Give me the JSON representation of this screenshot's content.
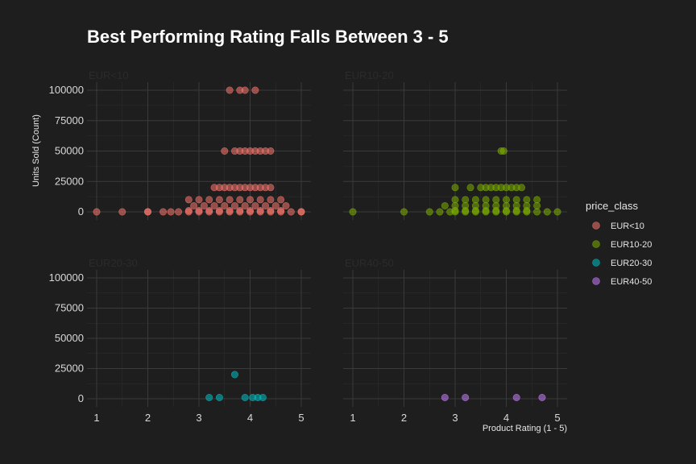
{
  "chart_data": {
    "type": "scatter",
    "title": "Best Performing Rating Falls Between 3 - 5",
    "xlabel": "Product Rating (1 - 5)",
    "ylabel": "Units Sold (Count)",
    "xlim": [
      1,
      5
    ],
    "ylim": [
      0,
      100000
    ],
    "x_ticks": [
      "1",
      "2",
      "3",
      "4",
      "5"
    ],
    "y_ticks": [
      "0",
      "25000",
      "50000",
      "75000",
      "100000"
    ],
    "grid": true,
    "legend": {
      "title": "price_class",
      "position": "right"
    },
    "facets": [
      {
        "name": "EUR<10",
        "color": "#f8766d",
        "points": [
          [
            1,
            0
          ],
          [
            1.5,
            0
          ],
          [
            2,
            0
          ],
          [
            2,
            100
          ],
          [
            2.3,
            0
          ],
          [
            2.45,
            0
          ],
          [
            2.6,
            0
          ],
          [
            2.8,
            0
          ],
          [
            3.0,
            0
          ],
          [
            3.2,
            0
          ],
          [
            3.4,
            0
          ],
          [
            3.6,
            0
          ],
          [
            3.8,
            0
          ],
          [
            4.0,
            0
          ],
          [
            4.2,
            0
          ],
          [
            4.4,
            0
          ],
          [
            4.6,
            0
          ],
          [
            4.8,
            0
          ],
          [
            5,
            0
          ],
          [
            5,
            100
          ],
          [
            3.0,
            1000
          ],
          [
            3.2,
            1000
          ],
          [
            3.4,
            1000
          ],
          [
            3.6,
            1000
          ],
          [
            3.8,
            1000
          ],
          [
            4.0,
            1000
          ],
          [
            4.2,
            1000
          ],
          [
            4.4,
            1000
          ],
          [
            4.6,
            1000
          ],
          [
            2.8,
            1000
          ],
          [
            3.1,
            5000
          ],
          [
            3.3,
            5000
          ],
          [
            3.5,
            5000
          ],
          [
            3.7,
            5000
          ],
          [
            3.9,
            5000
          ],
          [
            4.1,
            5000
          ],
          [
            4.3,
            5000
          ],
          [
            4.5,
            5000
          ],
          [
            4.7,
            5000
          ],
          [
            2.9,
            5000
          ],
          [
            3.0,
            10000
          ],
          [
            3.2,
            10000
          ],
          [
            3.4,
            10000
          ],
          [
            3.6,
            10000
          ],
          [
            3.8,
            10000
          ],
          [
            4.0,
            10000
          ],
          [
            4.2,
            10000
          ],
          [
            4.4,
            10000
          ],
          [
            4.6,
            10000
          ],
          [
            2.8,
            10000
          ],
          [
            3.3,
            20000
          ],
          [
            3.4,
            20000
          ],
          [
            3.5,
            20000
          ],
          [
            3.6,
            20000
          ],
          [
            3.7,
            20000
          ],
          [
            3.8,
            20000
          ],
          [
            3.9,
            20000
          ],
          [
            4.0,
            20000
          ],
          [
            4.1,
            20000
          ],
          [
            4.2,
            20000
          ],
          [
            4.3,
            20000
          ],
          [
            4.4,
            20000
          ],
          [
            3.5,
            50000
          ],
          [
            3.7,
            50000
          ],
          [
            3.8,
            50000
          ],
          [
            3.9,
            50000
          ],
          [
            4.0,
            50000
          ],
          [
            4.1,
            50000
          ],
          [
            4.2,
            50000
          ],
          [
            4.3,
            50000
          ],
          [
            4.4,
            50000
          ],
          [
            3.6,
            100000
          ],
          [
            3.8,
            100000
          ],
          [
            3.9,
            100000
          ],
          [
            4.1,
            100000
          ]
        ]
      },
      {
        "name": "EUR10-20",
        "color": "#7cae00",
        "points": [
          [
            1,
            0
          ],
          [
            2,
            0
          ],
          [
            2.5,
            0
          ],
          [
            2.7,
            0
          ],
          [
            2.9,
            0
          ],
          [
            3.0,
            0
          ],
          [
            3.2,
            0
          ],
          [
            3.4,
            0
          ],
          [
            3.6,
            0
          ],
          [
            3.8,
            0
          ],
          [
            4.0,
            0
          ],
          [
            4.2,
            0
          ],
          [
            4.4,
            0
          ],
          [
            4.6,
            0
          ],
          [
            4.8,
            0
          ],
          [
            5,
            0
          ],
          [
            3.0,
            1000
          ],
          [
            3.2,
            1000
          ],
          [
            3.4,
            1000
          ],
          [
            3.6,
            1000
          ],
          [
            3.8,
            1000
          ],
          [
            4.0,
            1000
          ],
          [
            4.2,
            1000
          ],
          [
            4.4,
            1000
          ],
          [
            3.0,
            5000
          ],
          [
            3.2,
            5000
          ],
          [
            3.4,
            5000
          ],
          [
            3.6,
            5000
          ],
          [
            3.8,
            5000
          ],
          [
            4.0,
            5000
          ],
          [
            4.2,
            5000
          ],
          [
            4.4,
            5000
          ],
          [
            4.6,
            5000
          ],
          [
            2.8,
            5000
          ],
          [
            3.0,
            10000
          ],
          [
            3.2,
            10000
          ],
          [
            3.4,
            10000
          ],
          [
            3.6,
            10000
          ],
          [
            3.8,
            10000
          ],
          [
            4.0,
            10000
          ],
          [
            4.2,
            10000
          ],
          [
            4.4,
            10000
          ],
          [
            4.6,
            10000
          ],
          [
            3.0,
            20000
          ],
          [
            3.3,
            20000
          ],
          [
            3.5,
            20000
          ],
          [
            3.6,
            20000
          ],
          [
            3.7,
            20000
          ],
          [
            3.8,
            20000
          ],
          [
            3.9,
            20000
          ],
          [
            4.0,
            20000
          ],
          [
            4.1,
            20000
          ],
          [
            4.2,
            20000
          ],
          [
            4.3,
            20000
          ],
          [
            3.9,
            50000
          ],
          [
            3.95,
            50000
          ]
        ]
      },
      {
        "name": "EUR20-30",
        "color": "#00bfc4",
        "points": [
          [
            3.2,
            1000
          ],
          [
            3.4,
            1000
          ],
          [
            3.7,
            20000
          ],
          [
            3.9,
            1000
          ],
          [
            4.05,
            1000
          ],
          [
            4.15,
            1000
          ],
          [
            4.25,
            1000
          ]
        ]
      },
      {
        "name": "EUR40-50",
        "color": "#c77cff",
        "points": [
          [
            2.8,
            1000
          ],
          [
            3.2,
            1000
          ],
          [
            4.2,
            1000
          ],
          [
            4.7,
            1000
          ]
        ]
      }
    ]
  }
}
